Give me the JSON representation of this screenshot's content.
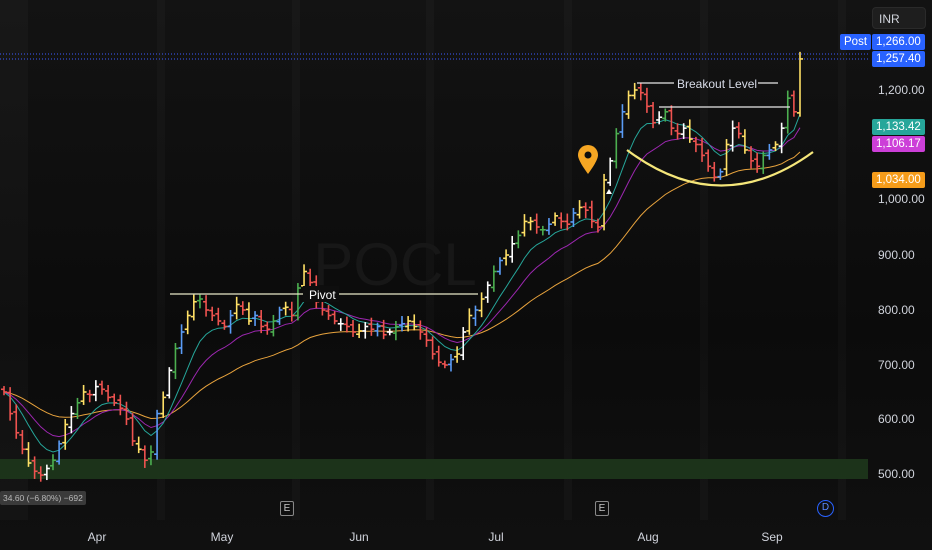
{
  "header": {
    "currency": "INR"
  },
  "badges": {
    "post_label": "Post",
    "post_price": "1,266.00",
    "last_price": "1,257.40",
    "ema_fast": "1,133.42",
    "ema_mid": "1,106.17",
    "ema_slow": "1,034.00"
  },
  "colors": {
    "background": "#0e0e0e",
    "up_bar": "#4caf50",
    "down_bar": "#ef5350",
    "blue_bar": "#5b9cf6",
    "yellow_bar": "#ffe066",
    "white_bar": "#ffffff",
    "ema_fast": "#26a69a",
    "ema_mid": "#9c27b0",
    "ema_slow": "#e8a33d",
    "support_zone": "#1f3a1c",
    "post_badge": "#2962ff",
    "last_badge": "#2962ff",
    "ema_fast_badge": "#26a69a",
    "ema_mid_badge": "#cc3fd8",
    "ema_slow_badge": "#f59c1a"
  },
  "x_axis": [
    "Apr",
    "May",
    "Jun",
    "Jul",
    "Aug",
    "Sep"
  ],
  "y_axis": [
    "1,200.00",
    "1,000.00",
    "900.00",
    "800.00",
    "700.00",
    "600.00",
    "500.00"
  ],
  "events": {
    "earnings_1": "E",
    "earnings_2": "E",
    "dividend": "D"
  },
  "change_label": "34.60 (−6.80%) −692",
  "chart_data": {
    "type": "ohlc_bar",
    "y_axis_ticks": [
      500,
      600,
      700,
      800,
      900,
      1000,
      1200
    ],
    "x_axis_labels": [
      "Apr",
      "May",
      "Jun",
      "Jul",
      "Aug",
      "Sep"
    ],
    "price_levels": {
      "post_market": 1266.0,
      "last": 1257.4,
      "ema_fast": 1133.42,
      "ema_mid": 1106.17,
      "ema_slow": 1034.0
    },
    "annotations": [
      {
        "label": "Pivot",
        "type": "horizontal_line",
        "price": 832
      },
      {
        "label": "Breakout Level",
        "type": "horizontal_line",
        "price": 1210
      },
      {
        "type": "cup_curve",
        "low_price": 1025
      },
      {
        "type": "location_marker",
        "price": 1070
      }
    ],
    "support_zone": {
      "low": 490,
      "high": 525
    },
    "bar_colors_cycle": [
      "#ef5350",
      "#4caf50",
      "#5b9cf6",
      "#ffe066",
      "#ffffff"
    ],
    "closes": [
      650,
      610,
      575,
      545,
      520,
      505,
      498,
      510,
      525,
      555,
      590,
      610,
      630,
      650,
      645,
      660,
      655,
      640,
      630,
      620,
      600,
      560,
      545,
      525,
      540,
      610,
      640,
      690,
      730,
      760,
      790,
      815,
      820,
      800,
      790,
      780,
      770,
      790,
      810,
      800,
      780,
      790,
      770,
      765,
      780,
      800,
      805,
      790,
      840,
      870,
      850,
      815,
      800,
      790,
      780,
      775,
      770,
      760,
      762,
      770,
      765,
      770,
      755,
      760,
      770,
      775,
      780,
      770,
      760,
      745,
      720,
      705,
      700,
      710,
      720,
      760,
      790,
      800,
      820,
      845,
      870,
      890,
      900,
      920,
      935,
      960,
      960,
      950,
      945,
      955,
      970,
      960,
      955,
      975,
      985,
      980,
      960,
      950,
      1035,
      1070,
      1120,
      1160,
      1190,
      1200,
      1195,
      1170,
      1140,
      1150,
      1160,
      1130,
      1120,
      1130,
      1110,
      1100,
      1080,
      1060,
      1040,
      1050,
      1100,
      1130,
      1120,
      1090,
      1070,
      1060,
      1080,
      1090,
      1100,
      1130,
      1185,
      1160,
      1257
    ]
  }
}
